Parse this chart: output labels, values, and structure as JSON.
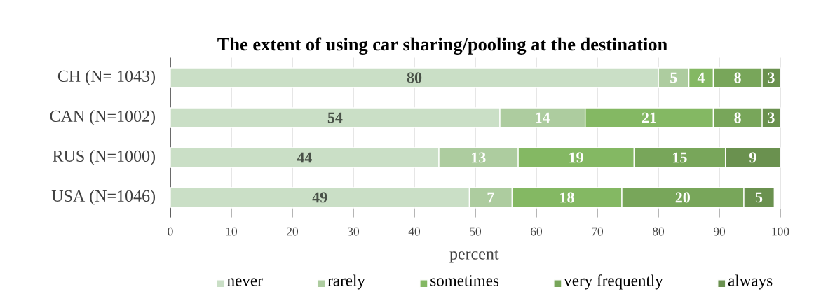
{
  "chart_data": {
    "type": "bar",
    "orientation": "horizontal",
    "stacked": true,
    "title": "The extent of  using car sharing/pooling at the destination",
    "xlabel": "percent",
    "categories": [
      "CH (N= 1043)",
      "CAN (N=1002)",
      "RUS (N=1000)",
      "USA (N=1046)"
    ],
    "series": [
      {
        "name": "never",
        "color": "#cadfc6",
        "values": [
          80,
          54,
          44,
          49
        ]
      },
      {
        "name": "rarely",
        "color": "#adcc9f",
        "values": [
          5,
          14,
          13,
          7
        ]
      },
      {
        "name": "sometimes",
        "color": "#84b863",
        "values": [
          4,
          21,
          19,
          18
        ]
      },
      {
        "name": "very frequently",
        "color": "#78a65a",
        "values": [
          8,
          8,
          15,
          20
        ]
      },
      {
        "name": "always",
        "color": "#6a914f",
        "values": [
          3,
          3,
          9,
          5
        ]
      }
    ],
    "xlim": [
      0,
      100
    ],
    "xticks": [
      0,
      10,
      20,
      30,
      40,
      50,
      60,
      70,
      80,
      90,
      100
    ],
    "grid": "x",
    "legend": "bottom",
    "data_labels": true
  }
}
